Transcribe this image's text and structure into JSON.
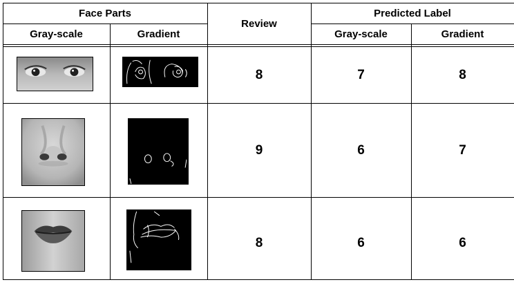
{
  "table": {
    "headers": {
      "face_parts": "Face Parts",
      "review": "Review",
      "predicted_label": "Predicted Label",
      "gray_scale": "Gray-scale",
      "gradient": "Gradient",
      "pred_gray_scale": "Gray-scale",
      "pred_gradient": "Gradient"
    },
    "rows": [
      {
        "part": "eyes",
        "review": "8",
        "pred_gray": "7",
        "pred_gradient": "8"
      },
      {
        "part": "nose",
        "review": "9",
        "pred_gray": "6",
        "pred_gradient": "7"
      },
      {
        "part": "mouth",
        "review": "8",
        "pred_gray": "6",
        "pred_gradient": "6"
      }
    ]
  }
}
